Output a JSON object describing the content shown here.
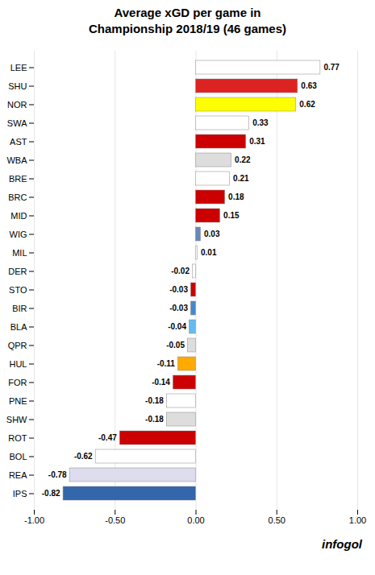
{
  "chart_data": {
    "type": "bar",
    "orientation": "horizontal",
    "title": "Average xGD per game in\nChampionship 2018/19 (46 games)",
    "categories": [
      "LEE",
      "SHU",
      "NOR",
      "SWA",
      "AST",
      "WBA",
      "BRE",
      "BRC",
      "MID",
      "WIG",
      "MIL",
      "DER",
      "STO",
      "BIR",
      "BLA",
      "QPR",
      "HUL",
      "FOR",
      "PNE",
      "SHW",
      "ROT",
      "BOL",
      "REA",
      "IPS"
    ],
    "values": [
      0.77,
      0.63,
      0.62,
      0.33,
      0.31,
      0.22,
      0.21,
      0.18,
      0.15,
      0.03,
      0.01,
      -0.02,
      -0.03,
      -0.03,
      -0.04,
      -0.05,
      -0.11,
      -0.14,
      -0.18,
      -0.18,
      -0.47,
      -0.62,
      -0.78,
      -0.82
    ],
    "colors": [
      "#ffffff",
      "#dd2222",
      "#ffff00",
      "#ffffff",
      "#cc0000",
      "#dddddd",
      "#ffffff",
      "#cc0000",
      "#cc0000",
      "#6688bb",
      "#ffffff",
      "#ffffff",
      "#cc0000",
      "#4488cc",
      "#66bbee",
      "#dddddd",
      "#ffaa00",
      "#cc0000",
      "#ffffff",
      "#dddddd",
      "#cc0000",
      "#ffffff",
      "#ddddee",
      "#3366aa"
    ],
    "xlim": [
      -1.0,
      1.0
    ],
    "xticks": [
      {
        "value": -1.0,
        "label": "-1.00"
      },
      {
        "value": -0.5,
        "label": "-0.50"
      },
      {
        "value": 0.0,
        "label": "0.00"
      },
      {
        "value": 0.5,
        "label": "0.50"
      },
      {
        "value": 1.0,
        "label": "1.00"
      }
    ],
    "grid": true,
    "data_labels": true,
    "annotations": [
      "infogol"
    ]
  }
}
